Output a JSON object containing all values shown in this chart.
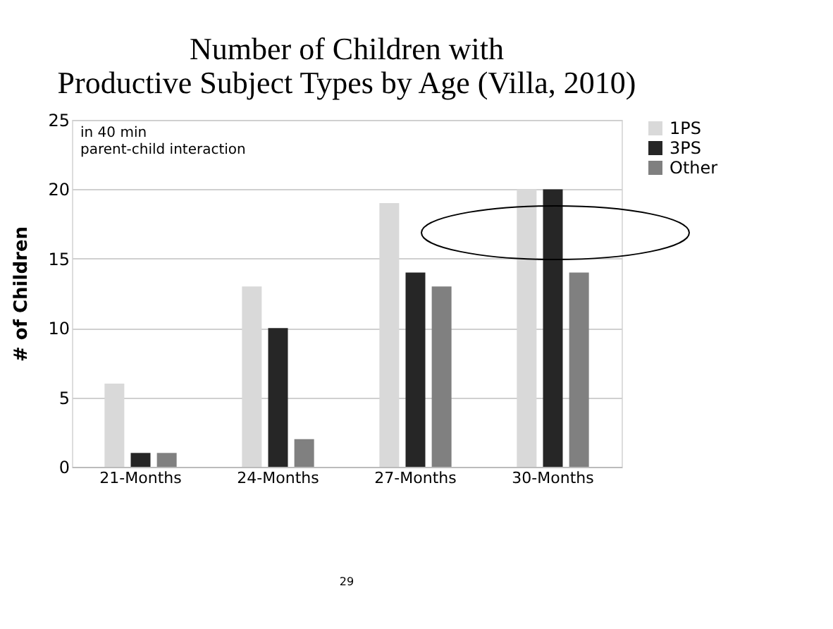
{
  "chart_data": {
    "type": "bar",
    "title": [
      "Number of Children with",
      "Productive Subject Types by Age (Villa, 2010)"
    ],
    "ylabel": "# of Children",
    "categories": [
      "21-Months",
      "24-Months",
      "27-Months",
      "30-Months"
    ],
    "series": [
      {
        "name": "1PS",
        "color": "#d9d9d9",
        "values": [
          6,
          13,
          19,
          20
        ]
      },
      {
        "name": "3PS",
        "color": "#262626",
        "values": [
          1,
          10,
          14,
          20
        ]
      },
      {
        "name": "Other",
        "color": "#808080",
        "values": [
          1,
          2,
          13,
          14
        ]
      }
    ],
    "ylim": [
      0,
      25
    ],
    "yticks": [
      0,
      5,
      10,
      15,
      20,
      25
    ],
    "grid": "y",
    "legend": "right",
    "annotations": [
      "in 40 min\nparent-child interaction",
      "29"
    ]
  }
}
